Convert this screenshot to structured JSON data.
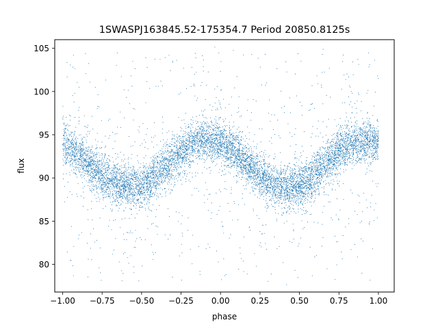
{
  "chart_data": {
    "type": "scatter",
    "title": "1SWASPJ163845.52-175354.7 Period 20850.8125s",
    "xlabel": "phase",
    "ylabel": "flux",
    "xlim": [
      -1.05,
      1.1
    ],
    "ylim": [
      76.8,
      106.0
    ],
    "xticks": [
      -1.0,
      -0.75,
      -0.5,
      -0.25,
      0.0,
      0.25,
      0.5,
      0.75,
      1.0
    ],
    "xtick_labels": [
      "−1.00",
      "−0.75",
      "−0.50",
      "−0.25",
      "0.00",
      "0.25",
      "0.50",
      "0.75",
      "1.00"
    ],
    "yticks": [
      80,
      85,
      90,
      95,
      100,
      105
    ],
    "ytick_labels": [
      "80",
      "85",
      "90",
      "95",
      "100",
      "105"
    ],
    "grid": false,
    "legend": "none",
    "marker_color": "#1f77b4",
    "series": [
      {
        "x": [
          -1.0,
          -0.95,
          -0.9,
          -0.85,
          -0.8,
          -0.75,
          -0.7,
          -0.65,
          -0.6,
          -0.55,
          -0.5,
          -0.45,
          -0.4,
          -0.35,
          -0.3,
          -0.25,
          -0.2,
          -0.15,
          -0.1,
          -0.05,
          0.0,
          0.05,
          0.1,
          0.15,
          0.2,
          0.25,
          0.3,
          0.35,
          0.4,
          0.45,
          0.5,
          0.55,
          0.6,
          0.65,
          0.7,
          0.75,
          0.8,
          0.85,
          0.9,
          0.95,
          1.0
        ],
        "y_trend": [
          94.0,
          93.3,
          92.6,
          91.8,
          91.0,
          90.3,
          89.7,
          89.2,
          88.9,
          88.8,
          89.0,
          89.6,
          90.4,
          91.3,
          92.2,
          93.0,
          93.6,
          94.0,
          94.3,
          94.3,
          94.1,
          93.6,
          92.9,
          92.0,
          91.1,
          90.3,
          89.6,
          89.1,
          88.8,
          88.8,
          89.1,
          89.6,
          90.4,
          91.4,
          92.3,
          93.1,
          93.6,
          94.0,
          94.2,
          94.2,
          94.1
        ],
        "scatter_width": 2.2,
        "outlier_range": [
          78.0,
          104.8
        ],
        "point_count": 9000
      }
    ]
  }
}
